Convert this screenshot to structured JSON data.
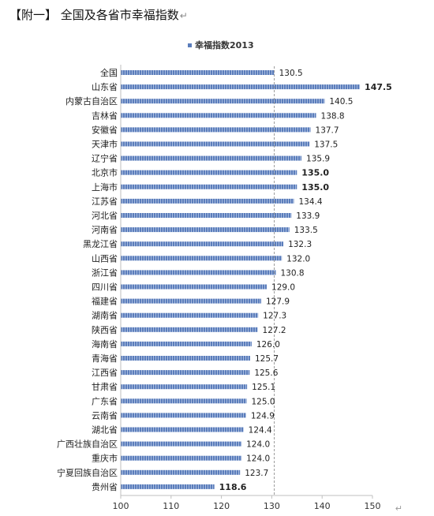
{
  "document": {
    "title": "【附一】 全国及各省市幸福指数",
    "return_mark": "↵"
  },
  "chart_data": {
    "type": "bar",
    "orientation": "horizontal",
    "title": "",
    "xlabel": "",
    "ylabel": "",
    "xlim": [
      100,
      150
    ],
    "xticks": [
      100,
      110,
      120,
      130,
      140,
      150
    ],
    "reference_line": 130.5,
    "bar_color": "#6f8fc4",
    "legend": {
      "position": "top",
      "label": "幸福指数2013"
    },
    "grid": false,
    "categories": [
      "全国",
      "山东省",
      "内蒙古自治区",
      "吉林省",
      "安徽省",
      "天津市",
      "辽宁省",
      "北京市",
      "上海市",
      "江苏省",
      "河北省",
      "河南省",
      "黑龙江省",
      "山西省",
      "浙江省",
      "四川省",
      "福建省",
      "湖南省",
      "陕西省",
      "海南省",
      "青海省",
      "江西省",
      "甘肃省",
      "广东省",
      "云南省",
      "湖北省",
      "广西壮族自治区",
      "重庆市",
      "宁夏回族自治区",
      "贵州省"
    ],
    "series": [
      {
        "name": "幸福指数2013",
        "values": [
          130.5,
          147.5,
          140.5,
          138.8,
          137.7,
          137.5,
          135.9,
          135.0,
          135.0,
          134.4,
          133.9,
          133.5,
          132.3,
          132.0,
          130.8,
          129.0,
          127.9,
          127.3,
          127.2,
          126.0,
          125.7,
          125.6,
          125.1,
          125.0,
          124.9,
          124.4,
          124.0,
          124.0,
          123.7,
          118.6
        ],
        "labels": [
          "130.5",
          "147.5",
          "140.5",
          "138.8",
          "137.7",
          "137.5",
          "135.9",
          "135.0",
          "135.0",
          "134.4",
          "133.9",
          "133.5",
          "132.3",
          "132.0",
          "130.8",
          "129.0",
          "127.9",
          "127.3",
          "127.2",
          "126.0",
          "125.7",
          "125.6",
          "125.1",
          "125.0",
          "124.9",
          "124.4",
          "124.0",
          "124.0",
          "123.7",
          "118.6"
        ],
        "bold_labels": [
          "147.5",
          "135.0",
          "118.6"
        ]
      }
    ]
  }
}
